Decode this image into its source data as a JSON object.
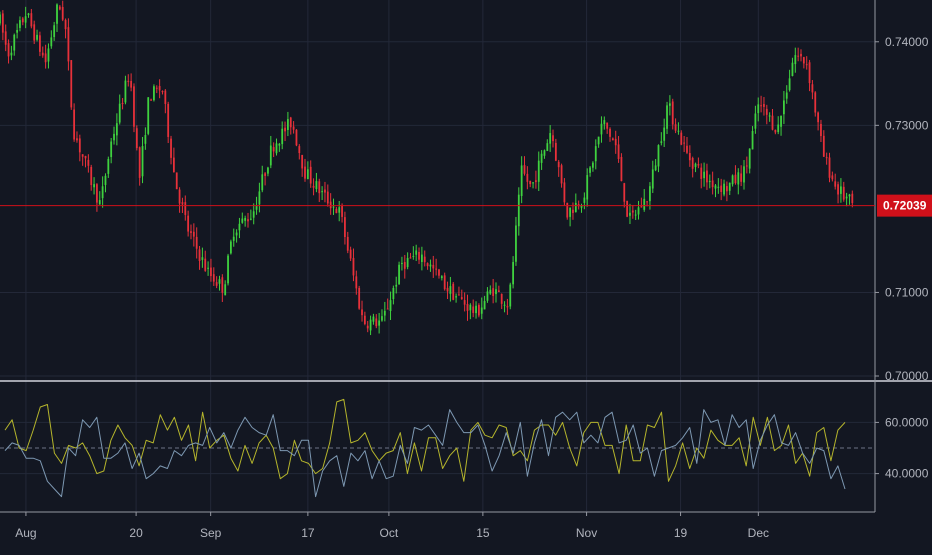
{
  "colors": {
    "background": "#131722",
    "grid": "#232838",
    "axis_line": "#9598a1",
    "separator": "#d1d4dc",
    "up": "#3fd23f",
    "down": "#e8313a",
    "last_price": "#d0101a",
    "osc_yellow": "#b5b52c",
    "osc_blue": "#7d98b2",
    "osc_midline": "#6c7385"
  },
  "last_price": {
    "label": "0.72039",
    "value": 0.72039
  },
  "chart_data": [
    {
      "type": "candlestick",
      "ylim": [
        0.7,
        0.745
      ],
      "y_ticks": [
        {
          "label": "0.74000",
          "value": 0.74
        },
        {
          "label": "0.73000",
          "value": 0.73
        },
        {
          "label": "0.72039",
          "value": 0.72039
        },
        {
          "label": "0.71000",
          "value": 0.71
        },
        {
          "label": "0.70000",
          "value": 0.7
        }
      ],
      "trend": [
        [
          0,
          0.7425
        ],
        [
          0.012,
          0.7385
        ],
        [
          0.04,
          0.7435
        ],
        [
          0.07,
          0.7375
        ],
        [
          0.09,
          0.7445
        ],
        [
          0.1,
          0.7425
        ],
        [
          0.113,
          0.7295
        ],
        [
          0.14,
          0.7235
        ],
        [
          0.155,
          0.7205
        ],
        [
          0.17,
          0.7275
        ],
        [
          0.2,
          0.7365
        ],
        [
          0.215,
          0.7235
        ],
        [
          0.23,
          0.7335
        ],
        [
          0.25,
          0.7345
        ],
        [
          0.27,
          0.7235
        ],
        [
          0.29,
          0.7175
        ],
        [
          0.32,
          0.7125
        ],
        [
          0.345,
          0.7105
        ],
        [
          0.36,
          0.7175
        ],
        [
          0.39,
          0.7195
        ],
        [
          0.42,
          0.7275
        ],
        [
          0.45,
          0.7305
        ],
        [
          0.47,
          0.7245
        ],
        [
          0.5,
          0.7215
        ],
        [
          0.525,
          0.7195
        ],
        [
          0.56,
          0.7065
        ],
        [
          0.59,
          0.7065
        ],
        [
          0.62,
          0.7135
        ],
        [
          0.65,
          0.7145
        ],
        [
          0.69,
          0.7105
        ],
        [
          0.72,
          0.7085
        ],
        [
          0.735,
          0.7075
        ],
        [
          0.76,
          0.7105
        ],
        [
          0.785,
          0.7085
        ],
        [
          0.805,
          0.7245
        ],
        [
          0.82,
          0.7225
        ],
        [
          0.85,
          0.7295
        ],
        [
          0.875,
          0.7195
        ],
        [
          0.9,
          0.7215
        ],
        [
          0.93,
          0.7305
        ],
        [
          0.95,
          0.7275
        ],
        [
          0.97,
          0.7185
        ],
        [
          1.0,
          0.7215
        ],
        [
          1.03,
          0.7325
        ],
        [
          1.06,
          0.7265
        ],
        [
          1.09,
          0.7235
        ],
        [
          1.12,
          0.7225
        ],
        [
          1.15,
          0.7245
        ],
        [
          1.17,
          0.7325
        ],
        [
          1.2,
          0.7295
        ],
        [
          1.225,
          0.7385
        ],
        [
          1.245,
          0.7375
        ],
        [
          1.27,
          0.7265
        ],
        [
          1.29,
          0.7225
        ],
        [
          1.315,
          0.7205
        ]
      ],
      "series": [
        {
          "name": "",
          "color_key": "up"
        },
        {
          "name": "",
          "color_key": "down"
        }
      ]
    },
    {
      "type": "line",
      "ylim": [
        25,
        75
      ],
      "y_ticks": [
        {
          "label": "60.0000",
          "value": 60
        },
        {
          "label": "40.0000",
          "value": 40
        }
      ],
      "reference_line": 50,
      "series": [
        {
          "name": "",
          "color_key": "osc_yellow",
          "values": [
            57,
            61,
            50,
            49,
            57,
            66,
            67,
            48,
            44,
            51,
            50,
            52,
            47,
            40,
            41,
            53,
            59,
            54,
            51,
            43,
            53,
            52,
            63,
            57,
            62,
            53,
            59,
            45,
            64,
            50,
            53,
            55,
            46,
            41,
            51,
            44,
            52,
            55,
            50,
            38,
            40,
            53,
            45,
            44,
            40,
            42,
            52,
            68,
            69,
            52,
            53,
            56,
            49,
            45,
            48,
            49,
            56,
            40,
            52,
            41,
            54,
            54,
            42,
            47,
            50,
            37,
            57,
            60,
            55,
            54,
            59,
            58,
            47,
            49,
            45,
            57,
            59,
            59,
            55,
            60,
            50,
            43,
            56,
            60,
            60,
            51,
            51,
            40,
            59,
            45,
            45,
            59,
            58,
            64,
            37,
            43,
            52,
            42,
            50,
            46,
            57,
            53,
            51,
            51,
            54,
            43,
            62,
            51,
            62,
            49,
            51,
            59,
            44,
            48,
            39,
            56,
            58,
            45,
            57,
            60
          ]
        },
        {
          "name": "",
          "color_key": "osc_blue",
          "values": [
            49,
            52,
            51,
            46,
            46,
            45,
            37,
            34,
            31,
            50,
            47,
            61,
            58,
            62,
            46,
            46,
            48,
            52,
            42,
            48,
            38,
            40,
            43,
            42,
            49,
            47,
            51,
            52,
            51,
            58,
            52,
            56,
            50,
            57,
            62,
            58,
            56,
            55,
            63,
            49,
            49,
            47,
            53,
            53,
            31,
            41,
            45,
            47,
            35,
            48,
            45,
            49,
            38,
            45,
            38,
            39,
            51,
            44,
            58,
            57,
            59,
            55,
            51,
            65,
            60,
            56,
            56,
            59,
            51,
            41,
            47,
            56,
            48,
            60,
            39,
            52,
            61,
            47,
            62,
            64,
            61,
            64,
            52,
            55,
            52,
            62,
            64,
            52,
            53,
            59,
            48,
            50,
            39,
            49,
            50,
            51,
            54,
            58,
            44,
            65,
            60,
            61,
            51,
            63,
            58,
            61,
            42,
            53,
            59,
            63,
            52,
            51,
            56,
            48,
            44,
            50,
            49,
            38,
            43,
            34
          ]
        }
      ]
    }
  ],
  "x_axis": {
    "domain": [
      0,
      1.35
    ],
    "ticks": [
      {
        "label": "Aug",
        "value": 0.04
      },
      {
        "label": "20",
        "value": 0.21
      },
      {
        "label": "Sep",
        "value": 0.325
      },
      {
        "label": "17",
        "value": 0.475
      },
      {
        "label": "Oct",
        "value": 0.6
      },
      {
        "label": "15",
        "value": 0.745
      },
      {
        "label": "Nov",
        "value": 0.905
      },
      {
        "label": "19",
        "value": 1.05
      },
      {
        "label": "Dec",
        "value": 1.17
      }
    ]
  }
}
